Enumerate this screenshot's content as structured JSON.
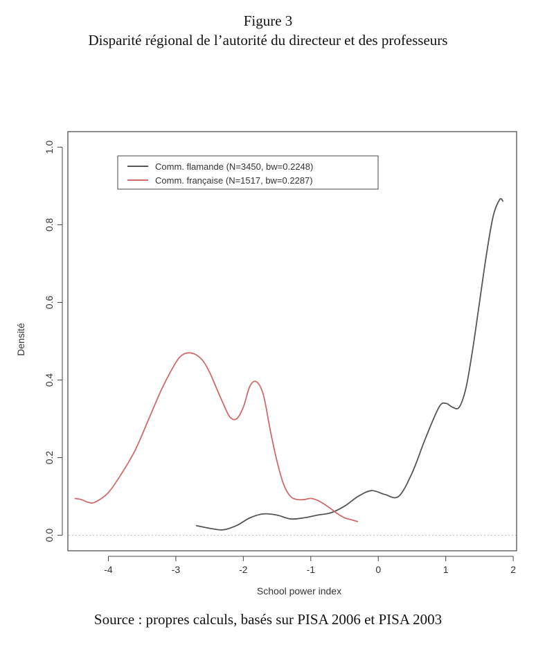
{
  "figure": {
    "number": "Figure 3",
    "title": "Disparité régional de  l’autorité du directeur et des professeurs",
    "source": "Source : propres calculs, basés sur PISA 2006 et PISA 2003"
  },
  "chart_data": {
    "type": "line",
    "xlabel": "School power index",
    "ylabel": "Densité",
    "xlim": [
      -4.6,
      2.05
    ],
    "ylim": [
      -0.04,
      1.04
    ],
    "x_ticks": [
      -4,
      -3,
      -2,
      -1,
      0,
      1,
      2
    ],
    "y_ticks": [
      0.0,
      0.2,
      0.4,
      0.6,
      0.8,
      1.0
    ],
    "x_tick_labels": [
      "-4",
      "-3",
      "-2",
      "-1",
      "0",
      "1",
      "2"
    ],
    "y_tick_labels": [
      "0.0",
      "0.2",
      "0.4",
      "0.6",
      "0.8",
      "1.0"
    ],
    "grid": false,
    "legend_position": "top-left",
    "baseline": 0.0,
    "series": [
      {
        "name": "Comm. flamande (N=3450, bw=0.2248)",
        "color": "#555555",
        "x": [
          -2.7,
          -2.5,
          -2.3,
          -2.1,
          -1.9,
          -1.7,
          -1.5,
          -1.3,
          -1.1,
          -0.9,
          -0.7,
          -0.5,
          -0.3,
          -0.1,
          0.1,
          0.3,
          0.5,
          0.7,
          0.9,
          1.0,
          1.1,
          1.2,
          1.3,
          1.4,
          1.5,
          1.6,
          1.7,
          1.8,
          1.85
        ],
        "y": [
          0.025,
          0.018,
          0.014,
          0.025,
          0.045,
          0.055,
          0.052,
          0.042,
          0.045,
          0.052,
          0.058,
          0.075,
          0.1,
          0.115,
          0.105,
          0.1,
          0.16,
          0.25,
          0.33,
          0.34,
          0.33,
          0.33,
          0.38,
          0.48,
          0.6,
          0.72,
          0.82,
          0.865,
          0.86
        ]
      },
      {
        "name": "Comm. française (N=1517, bw=0.2287)",
        "color": "#d06a6a",
        "x": [
          -4.5,
          -4.4,
          -4.3,
          -4.2,
          -4.0,
          -3.8,
          -3.6,
          -3.4,
          -3.2,
          -3.0,
          -2.9,
          -2.8,
          -2.7,
          -2.6,
          -2.5,
          -2.4,
          -2.3,
          -2.2,
          -2.1,
          -2.0,
          -1.9,
          -1.8,
          -1.7,
          -1.6,
          -1.5,
          -1.4,
          -1.3,
          -1.2,
          -1.1,
          -1.0,
          -0.9,
          -0.8,
          -0.7,
          -0.6,
          -0.5,
          -0.4,
          -0.3
        ],
        "y": [
          0.095,
          0.092,
          0.085,
          0.085,
          0.11,
          0.16,
          0.22,
          0.3,
          0.38,
          0.445,
          0.465,
          0.47,
          0.465,
          0.45,
          0.42,
          0.38,
          0.34,
          0.305,
          0.3,
          0.33,
          0.385,
          0.395,
          0.36,
          0.27,
          0.19,
          0.13,
          0.1,
          0.092,
          0.092,
          0.095,
          0.09,
          0.08,
          0.068,
          0.055,
          0.045,
          0.04,
          0.035
        ]
      }
    ]
  }
}
